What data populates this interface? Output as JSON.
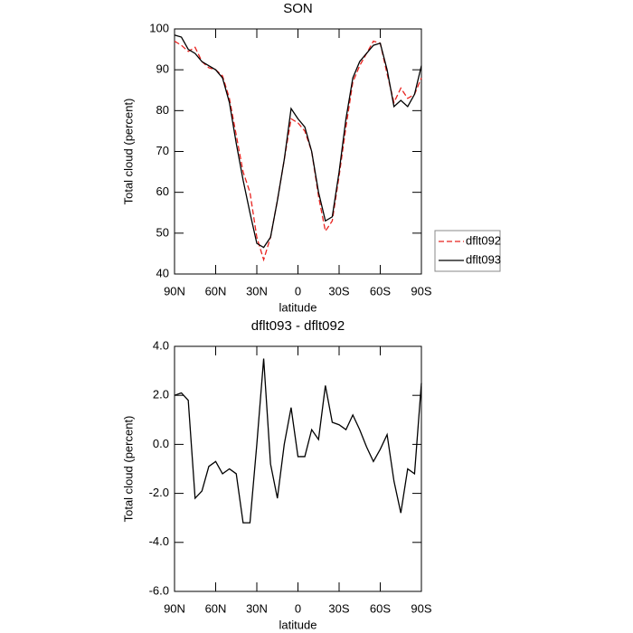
{
  "chart_data": [
    {
      "type": "line",
      "title": "SON",
      "x_label": "latitude",
      "y_label": "Total cloud (percent)",
      "x": [
        90,
        85,
        80,
        75,
        70,
        65,
        60,
        55,
        50,
        45,
        40,
        35,
        30,
        25,
        20,
        15,
        10,
        5,
        0,
        -5,
        -10,
        -15,
        -20,
        -25,
        -30,
        -35,
        -40,
        -45,
        -50,
        -55,
        -60,
        -65,
        -70,
        -75,
        -80,
        -85,
        -90
      ],
      "series": [
        {
          "name": "dflt092",
          "color": "#e8231f",
          "line_style": "dashed",
          "values": [
            97,
            96,
            94.5,
            95.5,
            92,
            90.5,
            90,
            88.5,
            83,
            74,
            65,
            60,
            49,
            43.5,
            49,
            58,
            68,
            78,
            77,
            75,
            70,
            59,
            50.5,
            53,
            64,
            76,
            87,
            91,
            94,
            97,
            96.5,
            89,
            82,
            85.5,
            83,
            84,
            88
          ]
        },
        {
          "name": "dflt093",
          "color": "#000000",
          "line_style": "solid",
          "values": [
            98.5,
            98,
            95,
            94,
            92,
            91,
            90,
            88,
            82,
            72,
            63,
            55,
            47.5,
            46.5,
            49,
            58,
            68,
            80.5,
            78,
            76,
            70,
            60,
            53,
            54,
            65,
            78,
            88,
            92,
            94,
            96,
            96.5,
            90,
            81,
            82.5,
            81,
            84,
            91
          ]
        }
      ],
      "xlim": [
        90,
        -90
      ],
      "xticks": [
        {
          "value": 90,
          "label": "90N"
        },
        {
          "value": 60,
          "label": "60N"
        },
        {
          "value": 30,
          "label": "30N"
        },
        0,
        {
          "value": -30,
          "label": "30S"
        },
        {
          "value": -60,
          "label": "60S"
        },
        {
          "value": -90,
          "label": "90S"
        }
      ],
      "ylim": [
        40,
        100
      ],
      "yticks": [
        40,
        50,
        60,
        70,
        80,
        90,
        100
      ],
      "legend": "right"
    },
    {
      "type": "line",
      "title": "dflt093 - dflt092",
      "x_label": "latitude",
      "y_label": "Total cloud (percent)",
      "x": [
        90,
        85,
        80,
        75,
        70,
        65,
        60,
        55,
        50,
        45,
        40,
        35,
        30,
        25,
        20,
        15,
        10,
        5,
        0,
        -5,
        -10,
        -15,
        -20,
        -25,
        -30,
        -35,
        -40,
        -45,
        -50,
        -55,
        -60,
        -65,
        -70,
        -75,
        -80,
        -85,
        -90
      ],
      "series": [
        {
          "color": "#000000",
          "line_style": "solid",
          "values": [
            2.0,
            2.1,
            1.8,
            -2.2,
            -1.9,
            -0.9,
            -0.7,
            -1.2,
            -1.0,
            -1.2,
            -3.2,
            -3.2,
            0.0,
            3.5,
            -0.8,
            -2.2,
            0.0,
            1.5,
            -0.5,
            -0.5,
            0.6,
            0.2,
            2.4,
            0.9,
            0.8,
            0.6,
            1.2,
            0.6,
            -0.1,
            -0.7,
            -0.2,
            0.4,
            -1.5,
            -2.8,
            -1.0,
            -1.2,
            2.5
          ]
        }
      ],
      "xlim": [
        90,
        -90
      ],
      "xticks": [
        {
          "value": 90,
          "label": "90N"
        },
        {
          "value": 60,
          "label": "60N"
        },
        {
          "value": 30,
          "label": "30N"
        },
        0,
        {
          "value": -30,
          "label": "30S"
        },
        {
          "value": -60,
          "label": "60S"
        },
        {
          "value": -90,
          "label": "90S"
        }
      ],
      "ylim": [
        -6,
        4
      ],
      "yticks": [
        {
          "value": -6,
          "label": "-6.0"
        },
        {
          "value": -4,
          "label": "-4.0"
        },
        {
          "value": -2,
          "label": "-2.0"
        },
        {
          "value": 0,
          "label": "0.0"
        },
        {
          "value": 2,
          "label": "2.0"
        },
        {
          "value": 4,
          "label": "4.0"
        }
      ]
    }
  ]
}
